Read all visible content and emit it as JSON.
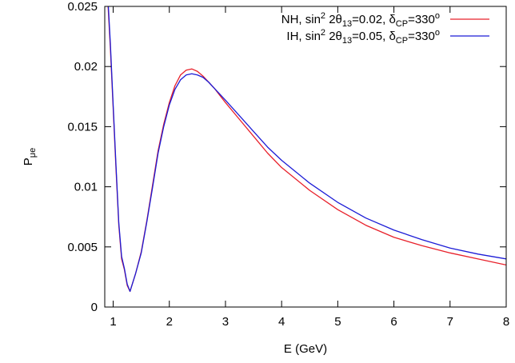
{
  "chart_data": {
    "type": "line",
    "xlabel": "E (GeV)",
    "ylabel": {
      "base": "P",
      "sub": "μe"
    },
    "xlim": [
      0.85,
      8
    ],
    "ylim": [
      0,
      0.025
    ],
    "x_ticks": [
      {
        "value": 1,
        "label": "1"
      },
      {
        "value": 2,
        "label": "2"
      },
      {
        "value": 3,
        "label": "3"
      },
      {
        "value": 4,
        "label": "4"
      },
      {
        "value": 5,
        "label": "5"
      },
      {
        "value": 6,
        "label": "6"
      },
      {
        "value": 7,
        "label": "7"
      },
      {
        "value": 8,
        "label": "8"
      }
    ],
    "y_ticks": [
      {
        "value": 0,
        "label": "0"
      },
      {
        "value": 0.005,
        "label": "0.005"
      },
      {
        "value": 0.01,
        "label": "0.01"
      },
      {
        "value": 0.015,
        "label": "0.015"
      },
      {
        "value": 0.02,
        "label": "0.02"
      },
      {
        "value": 0.025,
        "label": "0.025"
      }
    ],
    "grid": false,
    "legend_position": "top-right",
    "series": [
      {
        "name": "NH, sin2 2θ13=0.02, δCP=330o",
        "legend": [
          {
            "t": "NH, sin"
          },
          {
            "t": "2",
            "s": "sup"
          },
          {
            "t": " 2θ"
          },
          {
            "t": "13",
            "s": "sub"
          },
          {
            "t": "=0.02, δ"
          },
          {
            "t": "CP",
            "s": "sub"
          },
          {
            "t": "=330"
          },
          {
            "t": "o",
            "s": "sup"
          }
        ],
        "color": "#e8202a",
        "x": [
          0.9,
          0.95,
          1.0,
          1.05,
          1.1,
          1.15,
          1.2,
          1.25,
          1.3,
          1.4,
          1.5,
          1.6,
          1.7,
          1.8,
          1.9,
          2.0,
          2.1,
          2.2,
          2.3,
          2.4,
          2.5,
          2.6,
          2.7,
          2.8,
          2.9,
          3.0,
          3.25,
          3.5,
          3.75,
          4.0,
          4.5,
          5.0,
          5.5,
          6.0,
          6.5,
          7.0,
          7.5,
          8.0
        ],
        "y": [
          0.0258,
          0.0215,
          0.0165,
          0.0115,
          0.0068,
          0.004,
          0.0031,
          0.0018,
          0.0013,
          0.0028,
          0.0046,
          0.0072,
          0.0101,
          0.013,
          0.0152,
          0.017,
          0.0184,
          0.0193,
          0.0197,
          0.0198,
          0.0196,
          0.0192,
          0.0187,
          0.0182,
          0.0176,
          0.017,
          0.0156,
          0.0142,
          0.0128,
          0.0116,
          0.0097,
          0.0081,
          0.0068,
          0.0058,
          0.0051,
          0.0045,
          0.004,
          0.0035
        ]
      },
      {
        "name": "IH, sin2 2θ13=0.05, δCP=330o",
        "legend": [
          {
            "t": "IH, sin"
          },
          {
            "t": "2",
            "s": "sup"
          },
          {
            "t": " 2θ"
          },
          {
            "t": "13",
            "s": "sub"
          },
          {
            "t": "=0.05, δ"
          },
          {
            "t": "CP",
            "s": "sub"
          },
          {
            "t": "=330"
          },
          {
            "t": "o",
            "s": "sup"
          }
        ],
        "color": "#1c1cd6",
        "x": [
          0.9,
          0.95,
          1.0,
          1.05,
          1.1,
          1.15,
          1.2,
          1.25,
          1.3,
          1.4,
          1.5,
          1.6,
          1.7,
          1.8,
          1.9,
          2.0,
          2.1,
          2.2,
          2.3,
          2.4,
          2.5,
          2.6,
          2.7,
          2.8,
          2.9,
          3.0,
          3.25,
          3.5,
          3.75,
          4.0,
          4.5,
          5.0,
          5.5,
          6.0,
          6.5,
          7.0,
          7.5,
          8.0
        ],
        "y": [
          0.0262,
          0.0219,
          0.0168,
          0.0118,
          0.007,
          0.0042,
          0.0032,
          0.0019,
          0.0013,
          0.0028,
          0.0045,
          0.0071,
          0.0099,
          0.0128,
          0.015,
          0.0168,
          0.0181,
          0.0189,
          0.0193,
          0.0194,
          0.0193,
          0.0191,
          0.0187,
          0.0182,
          0.0177,
          0.0172,
          0.0159,
          0.0146,
          0.0133,
          0.0122,
          0.0103,
          0.0087,
          0.0074,
          0.0064,
          0.0056,
          0.0049,
          0.0044,
          0.004
        ]
      }
    ]
  }
}
